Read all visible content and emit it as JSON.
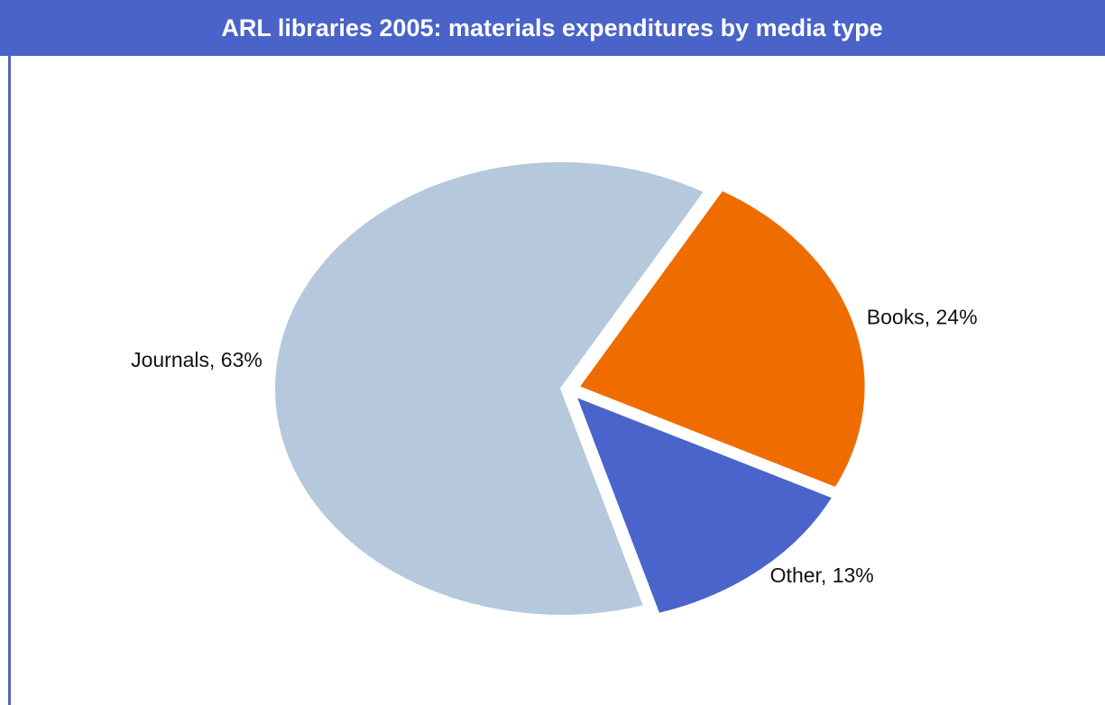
{
  "chart_data": {
    "type": "pie",
    "title": "ARL libraries 2005:  materials expenditures by media type",
    "values": [
      63,
      24,
      13
    ],
    "value_labels": [
      "Journals, 63%",
      "Books, 24%",
      "Other, 13%"
    ],
    "colors": [
      "#b5c8dc",
      "#ef6c00",
      "#4a64cc"
    ]
  }
}
